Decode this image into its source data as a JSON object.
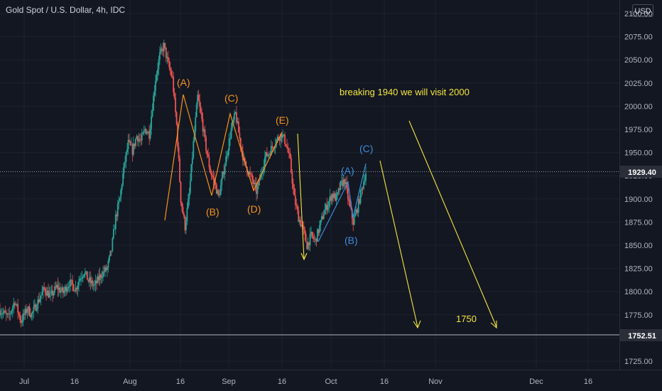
{
  "header": {
    "title": "Gold Spot / U.S. Dollar, 4h, IDC",
    "currency": "USD"
  },
  "colors": {
    "background": "#131722",
    "up": "#26a69a",
    "down": "#ef5350",
    "wave_orange": "#f7931a",
    "wave_blue": "#3d8bd9",
    "annotation_yellow": "#f5e63c",
    "axis_text": "#b2b5be"
  },
  "chart_data": {
    "type": "candlestick",
    "symbol": "Gold Spot / U.S. Dollar",
    "interval": "4h",
    "source": "IDC",
    "y_ticks": [
      "1725.00",
      "1750.00",
      "1775.00",
      "1800.00",
      "1825.00",
      "1850.00",
      "1875.00",
      "1900.00",
      "1925.00",
      "1950.00",
      "1975.00",
      "2000.00",
      "2025.00",
      "2050.00",
      "2075.00",
      "2100.00"
    ],
    "x_ticks": [
      "Jul",
      "16",
      "Aug",
      "16",
      "Sep",
      "16",
      "Oct",
      "16",
      "Nov",
      "Dec",
      "16"
    ],
    "ylim": [
      1715,
      2110
    ],
    "price_lines": [
      {
        "label": "1929.40",
        "value": 1929.4,
        "style": "dotted"
      },
      {
        "label": "1752.51",
        "value": 1752.51,
        "style": "solid"
      }
    ],
    "price_path": [
      [
        0,
        1780
      ],
      [
        4,
        1772
      ],
      [
        7,
        1790
      ],
      [
        10,
        1768
      ],
      [
        13,
        1782
      ],
      [
        15,
        1775
      ],
      [
        18,
        1789
      ],
      [
        21,
        1803
      ],
      [
        24,
        1795
      ],
      [
        27,
        1805
      ],
      [
        30,
        1799
      ],
      [
        33,
        1810
      ],
      [
        36,
        1803
      ],
      [
        38,
        1815
      ],
      [
        40,
        1822
      ],
      [
        42,
        1812
      ],
      [
        45,
        1806
      ],
      [
        48,
        1818
      ],
      [
        51,
        1825
      ],
      [
        53,
        1845
      ],
      [
        55,
        1880
      ],
      [
        57,
        1900
      ],
      [
        59,
        1935
      ],
      [
        61,
        1960
      ],
      [
        63,
        1952
      ],
      [
        65,
        1968
      ],
      [
        67,
        1962
      ],
      [
        69,
        1975
      ],
      [
        71,
        1970
      ],
      [
        72,
        1990
      ],
      [
        74,
        2030
      ],
      [
        76,
        2055
      ],
      [
        78,
        2065
      ],
      [
        80,
        2045
      ],
      [
        82,
        2030
      ],
      [
        84,
        1980
      ],
      [
        86,
        1900
      ],
      [
        88,
        1870
      ],
      [
        90,
        1905
      ],
      [
        92,
        1960
      ],
      [
        94,
        2010
      ],
      [
        96,
        1985
      ],
      [
        98,
        1955
      ],
      [
        100,
        1930
      ],
      [
        102,
        1918
      ],
      [
        104,
        1902
      ],
      [
        106,
        1925
      ],
      [
        108,
        1950
      ],
      [
        110,
        1975
      ],
      [
        112,
        1992
      ],
      [
        114,
        1965
      ],
      [
        116,
        1940
      ],
      [
        118,
        1930
      ],
      [
        120,
        1920
      ],
      [
        122,
        1908
      ],
      [
        124,
        1925
      ],
      [
        126,
        1945
      ],
      [
        128,
        1950
      ],
      [
        130,
        1958
      ],
      [
        132,
        1965
      ],
      [
        134,
        1970
      ],
      [
        136,
        1960
      ],
      [
        138,
        1940
      ],
      [
        140,
        1900
      ],
      [
        142,
        1880
      ],
      [
        144,
        1868
      ],
      [
        146,
        1850
      ],
      [
        148,
        1860
      ],
      [
        150,
        1855
      ],
      [
        152,
        1870
      ],
      [
        154,
        1885
      ],
      [
        156,
        1895
      ],
      [
        158,
        1905
      ],
      [
        160,
        1900
      ],
      [
        162,
        1915
      ],
      [
        164,
        1920
      ],
      [
        166,
        1895
      ],
      [
        168,
        1875
      ],
      [
        170,
        1890
      ],
      [
        172,
        1910
      ],
      [
        174,
        1929
      ]
    ],
    "elliott_waves": {
      "orange": [
        {
          "label": "(A)",
          "price": 2012,
          "pos": 96
        },
        {
          "label": "(B)",
          "price": 1902,
          "pos": 107
        },
        {
          "label": "(C)",
          "price": 1993,
          "pos": 113
        },
        {
          "label": "(D)",
          "price": 1906,
          "pos": 124
        },
        {
          "label": "(E)",
          "price": 1972,
          "pos": 135
        }
      ],
      "blue": [
        {
          "label": "(A)",
          "price": 1918,
          "pos": 164
        },
        {
          "label": "(B)",
          "price": 1872,
          "pos": 167
        },
        {
          "label": "(C)",
          "price": 1938,
          "pos": 174
        }
      ]
    },
    "annotations": [
      {
        "text": "breaking 1940 we will visit 2000",
        "color": "#f5e63c"
      },
      {
        "text": "1750",
        "color": "#f5e63c"
      }
    ]
  }
}
